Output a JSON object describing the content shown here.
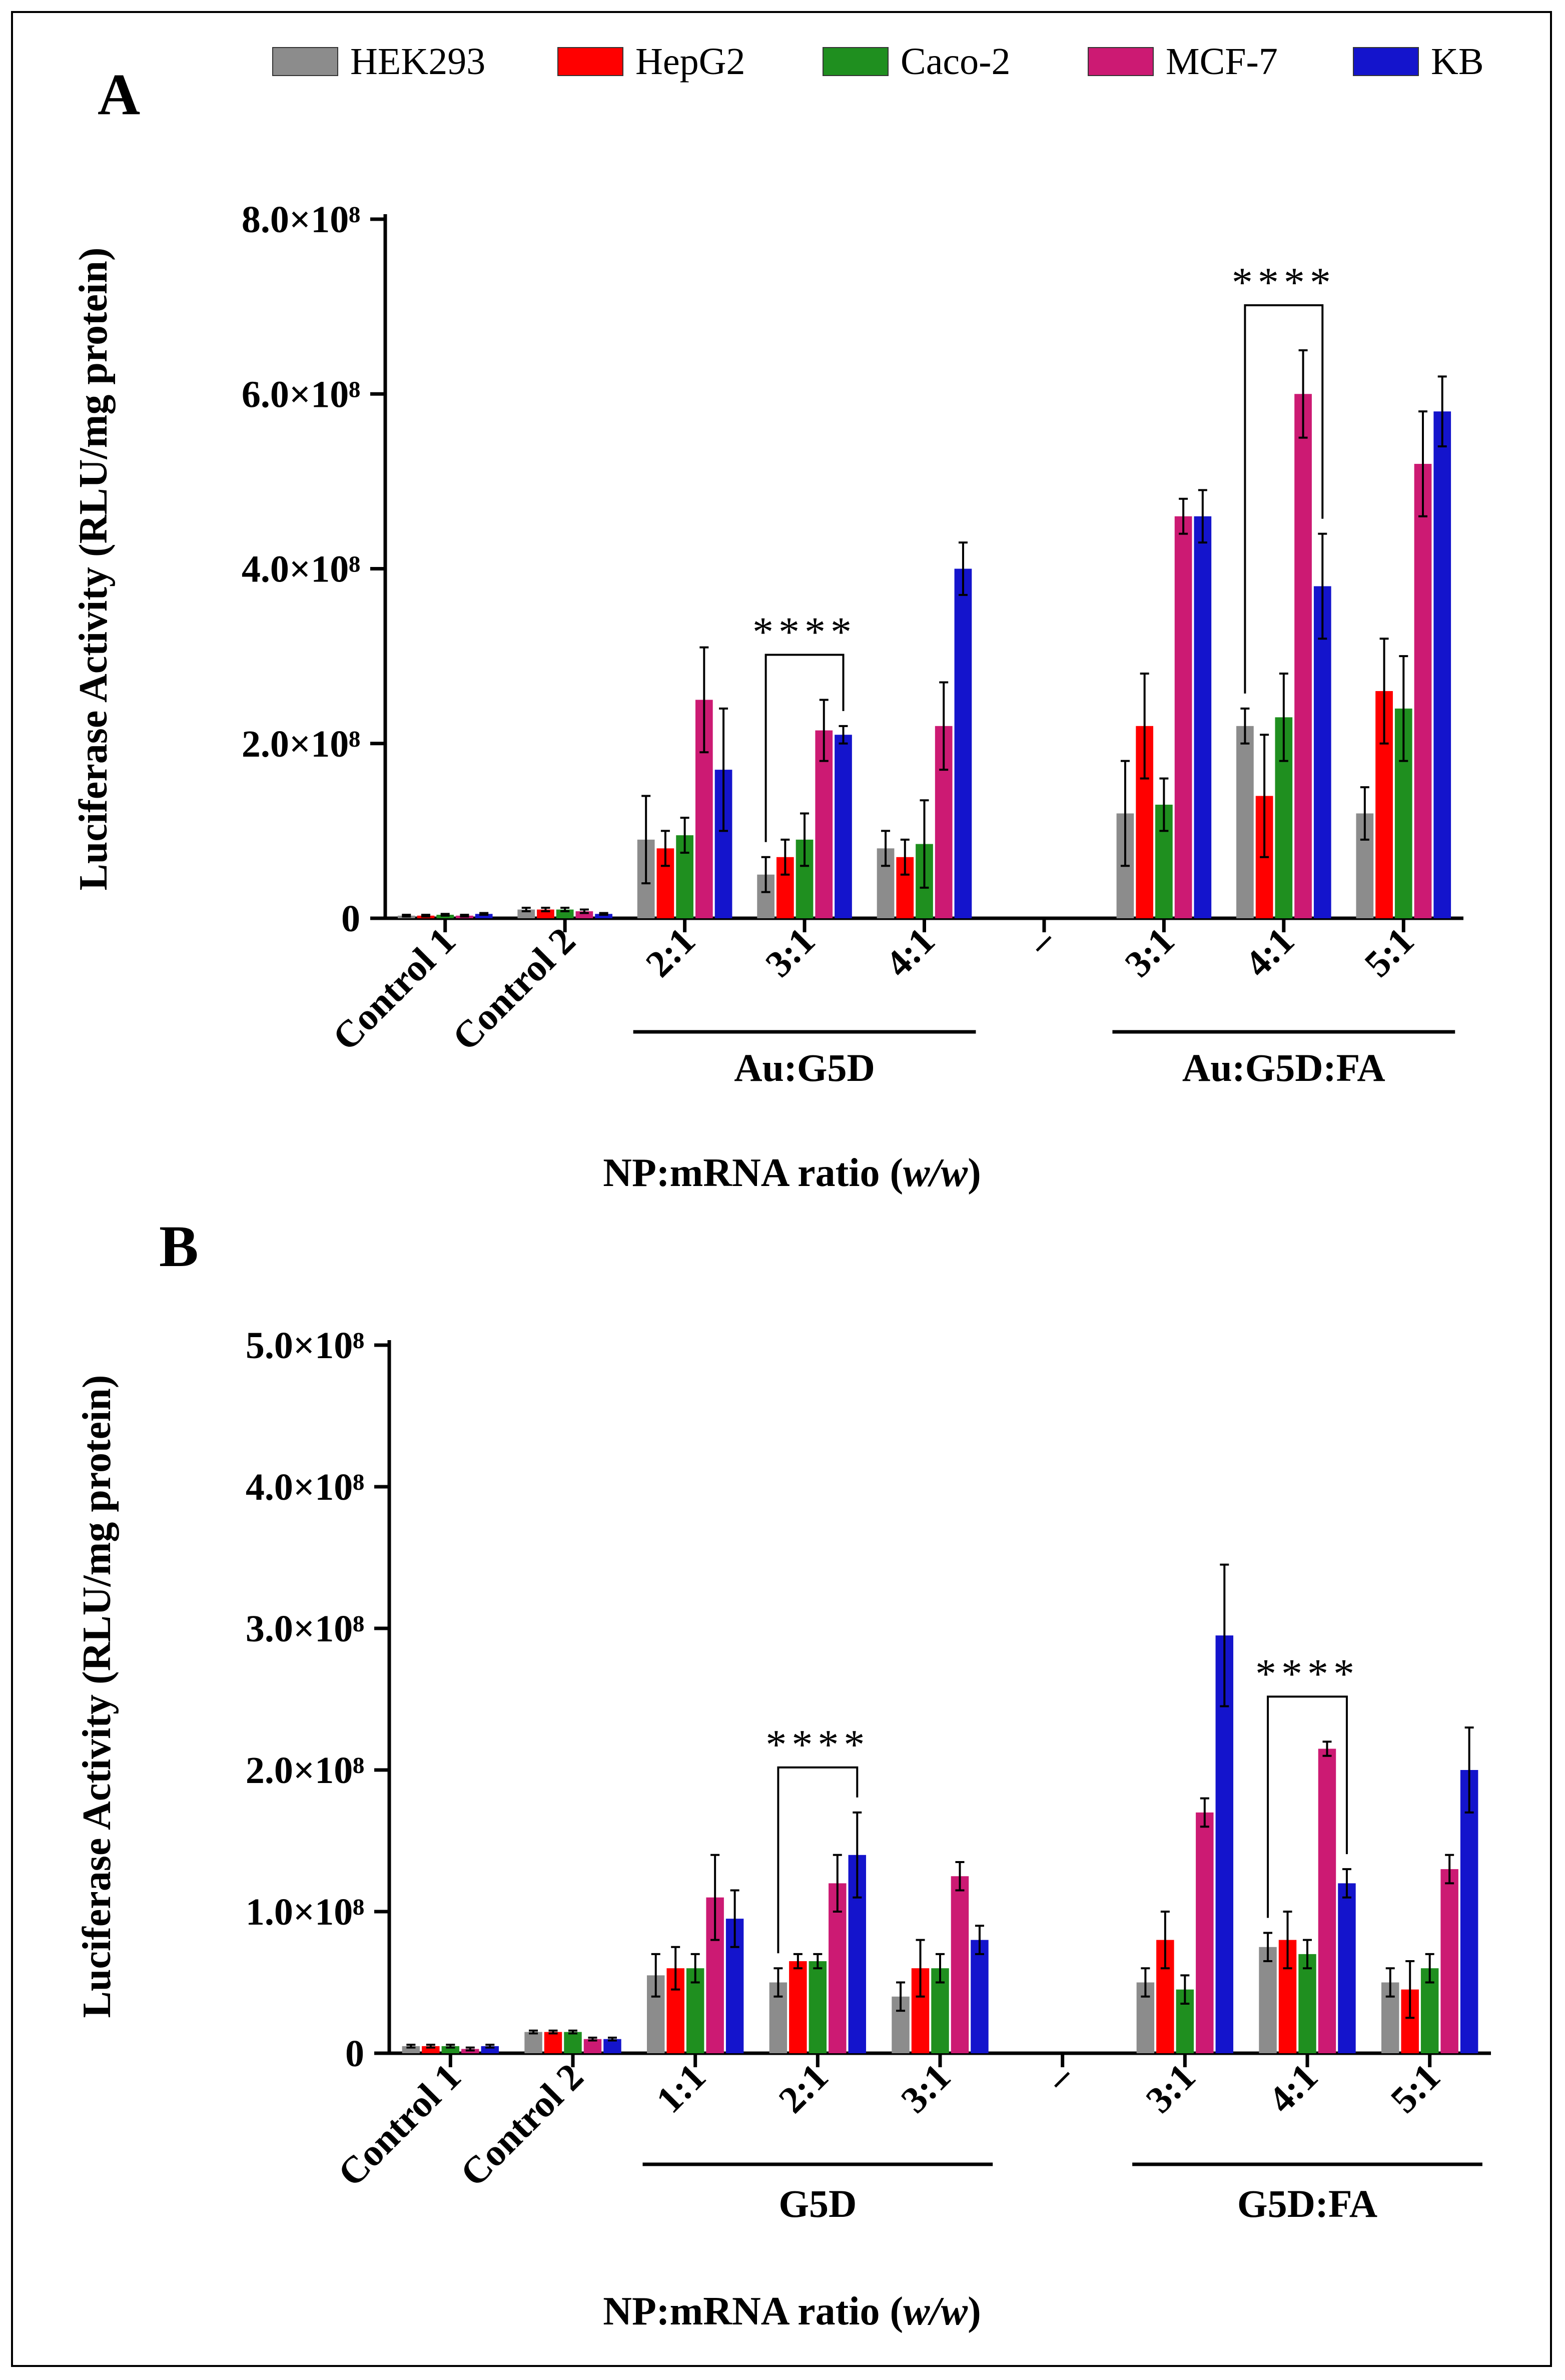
{
  "legend": [
    {
      "name": "HEK293",
      "color": "#8c8c8c"
    },
    {
      "name": "HepG2",
      "color": "#ff0000"
    },
    {
      "name": "Caco-2",
      "color": "#1f8f1f"
    },
    {
      "name": "MCF-7",
      "color": "#cc1a73"
    },
    {
      "name": "KB",
      "color": "#1414cc"
    }
  ],
  "chart_data": [
    {
      "panel": "A",
      "type": "bar",
      "xlabel": "NP:mRNA ratio (w/w)",
      "ylabel": "Luciferase Activity (RLU/mg protein)",
      "ylim": [
        0,
        800000000
      ],
      "yticks": [
        "0",
        "2.0×10⁸",
        "4.0×10⁸",
        "6.0×10⁸",
        "8.0×10⁸"
      ],
      "categories": [
        "Control 1",
        "Control 2",
        "2:1",
        "3:1",
        "4:1",
        "–",
        "3:1",
        "4:1",
        "5:1"
      ],
      "groups": [
        {
          "label": "Au:G5D",
          "from": 2,
          "to": 4
        },
        {
          "label": "Au:G5D:FA",
          "from": 6,
          "to": 8
        }
      ],
      "series": [
        {
          "name": "HEK293",
          "values": [
            3000000,
            10000000,
            90000000,
            50000000,
            80000000,
            0,
            120000000,
            220000000,
            120000000
          ],
          "errors": [
            1000000,
            2000000,
            50000000,
            20000000,
            20000000,
            0,
            60000000,
            20000000,
            30000000
          ]
        },
        {
          "name": "HepG2",
          "values": [
            3000000,
            10000000,
            80000000,
            70000000,
            70000000,
            0,
            220000000,
            140000000,
            260000000
          ],
          "errors": [
            1000000,
            2000000,
            20000000,
            20000000,
            20000000,
            0,
            60000000,
            70000000,
            60000000
          ]
        },
        {
          "name": "Caco-2",
          "values": [
            4000000,
            10000000,
            95000000,
            90000000,
            85000000,
            0,
            130000000,
            230000000,
            240000000
          ],
          "errors": [
            1000000,
            2000000,
            20000000,
            30000000,
            50000000,
            0,
            30000000,
            50000000,
            60000000
          ]
        },
        {
          "name": "MCF-7",
          "values": [
            3000000,
            8000000,
            250000000,
            215000000,
            220000000,
            0,
            460000000,
            600000000,
            520000000
          ],
          "errors": [
            1000000,
            2000000,
            60000000,
            35000000,
            50000000,
            0,
            20000000,
            50000000,
            60000000
          ]
        },
        {
          "name": "KB",
          "values": [
            5000000,
            5000000,
            170000000,
            210000000,
            400000000,
            0,
            460000000,
            380000000,
            580000000
          ],
          "errors": [
            1000000,
            1000000,
            70000000,
            10000000,
            30000000,
            0,
            30000000,
            60000000,
            40000000
          ]
        }
      ],
      "significance": [
        {
          "label": "****",
          "category": 3,
          "from_series": 0,
          "to_series": 4
        },
        {
          "label": "****",
          "category": 7,
          "from_series": 0,
          "to_series": 4
        }
      ]
    },
    {
      "panel": "B",
      "type": "bar",
      "xlabel": "NP:mRNA ratio (w/w)",
      "ylabel": "Luciferase Activity (RLU/mg protein)",
      "ylim": [
        0,
        500000000
      ],
      "yticks": [
        "0",
        "1.0×10⁸",
        "2.0×10⁸",
        "3.0×10⁸",
        "4.0×10⁸",
        "5.0×10⁸"
      ],
      "categories": [
        "Control 1",
        "Control 2",
        "1:1",
        "2:1",
        "3:1",
        "–",
        "3:1",
        "4:1",
        "5:1"
      ],
      "groups": [
        {
          "label": "G5D",
          "from": 2,
          "to": 4
        },
        {
          "label": "G5D:FA",
          "from": 6,
          "to": 8
        }
      ],
      "series": [
        {
          "name": "HEK293",
          "values": [
            5000000,
            15000000,
            55000000,
            50000000,
            40000000,
            0,
            50000000,
            75000000,
            50000000
          ],
          "errors": [
            1000000,
            1000000,
            15000000,
            10000000,
            10000000,
            0,
            10000000,
            10000000,
            10000000
          ]
        },
        {
          "name": "HepG2",
          "values": [
            5000000,
            15000000,
            60000000,
            65000000,
            60000000,
            0,
            80000000,
            80000000,
            45000000
          ],
          "errors": [
            1000000,
            1000000,
            15000000,
            5000000,
            20000000,
            0,
            20000000,
            20000000,
            20000000
          ]
        },
        {
          "name": "Caco-2",
          "values": [
            5000000,
            15000000,
            60000000,
            65000000,
            60000000,
            0,
            45000000,
            70000000,
            60000000
          ],
          "errors": [
            1000000,
            1000000,
            10000000,
            5000000,
            10000000,
            0,
            10000000,
            10000000,
            10000000
          ]
        },
        {
          "name": "MCF-7",
          "values": [
            3000000,
            10000000,
            110000000,
            120000000,
            125000000,
            0,
            170000000,
            215000000,
            130000000
          ],
          "errors": [
            1000000,
            1000000,
            30000000,
            20000000,
            10000000,
            0,
            10000000,
            5000000,
            10000000
          ]
        },
        {
          "name": "KB",
          "values": [
            5000000,
            10000000,
            95000000,
            140000000,
            80000000,
            0,
            295000000,
            120000000,
            200000000
          ],
          "errors": [
            1000000,
            1000000,
            20000000,
            30000000,
            10000000,
            0,
            50000000,
            10000000,
            30000000
          ]
        }
      ],
      "significance": [
        {
          "label": "****",
          "category": 3,
          "from_series": 0,
          "to_series": 4
        },
        {
          "label": "****",
          "category": 7,
          "from_series": 0,
          "to_series": 4
        }
      ]
    }
  ]
}
